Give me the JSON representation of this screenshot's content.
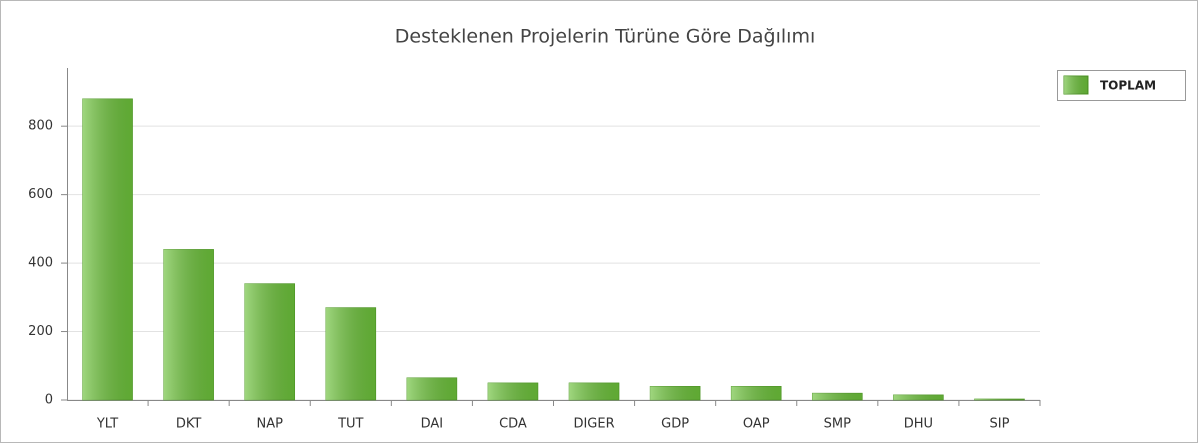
{
  "chart_data": {
    "type": "bar",
    "title": "Desteklenen Projelerin Türüne Göre Dağılımı",
    "categories": [
      "YLT",
      "DKT",
      "NAP",
      "TUT",
      "DAI",
      "CDA",
      "DIGER",
      "GDP",
      "OAP",
      "SMP",
      "DHU",
      "SIP"
    ],
    "series": [
      {
        "name": "TOPLAM",
        "color": "#6cc13a",
        "values": [
          880,
          440,
          340,
          270,
          65,
          50,
          50,
          40,
          40,
          20,
          15,
          3
        ]
      }
    ],
    "ylim": [
      0,
      970
    ],
    "yticks": [
      0,
      200,
      400,
      600,
      800
    ],
    "grid": true,
    "legend": "top-right"
  }
}
